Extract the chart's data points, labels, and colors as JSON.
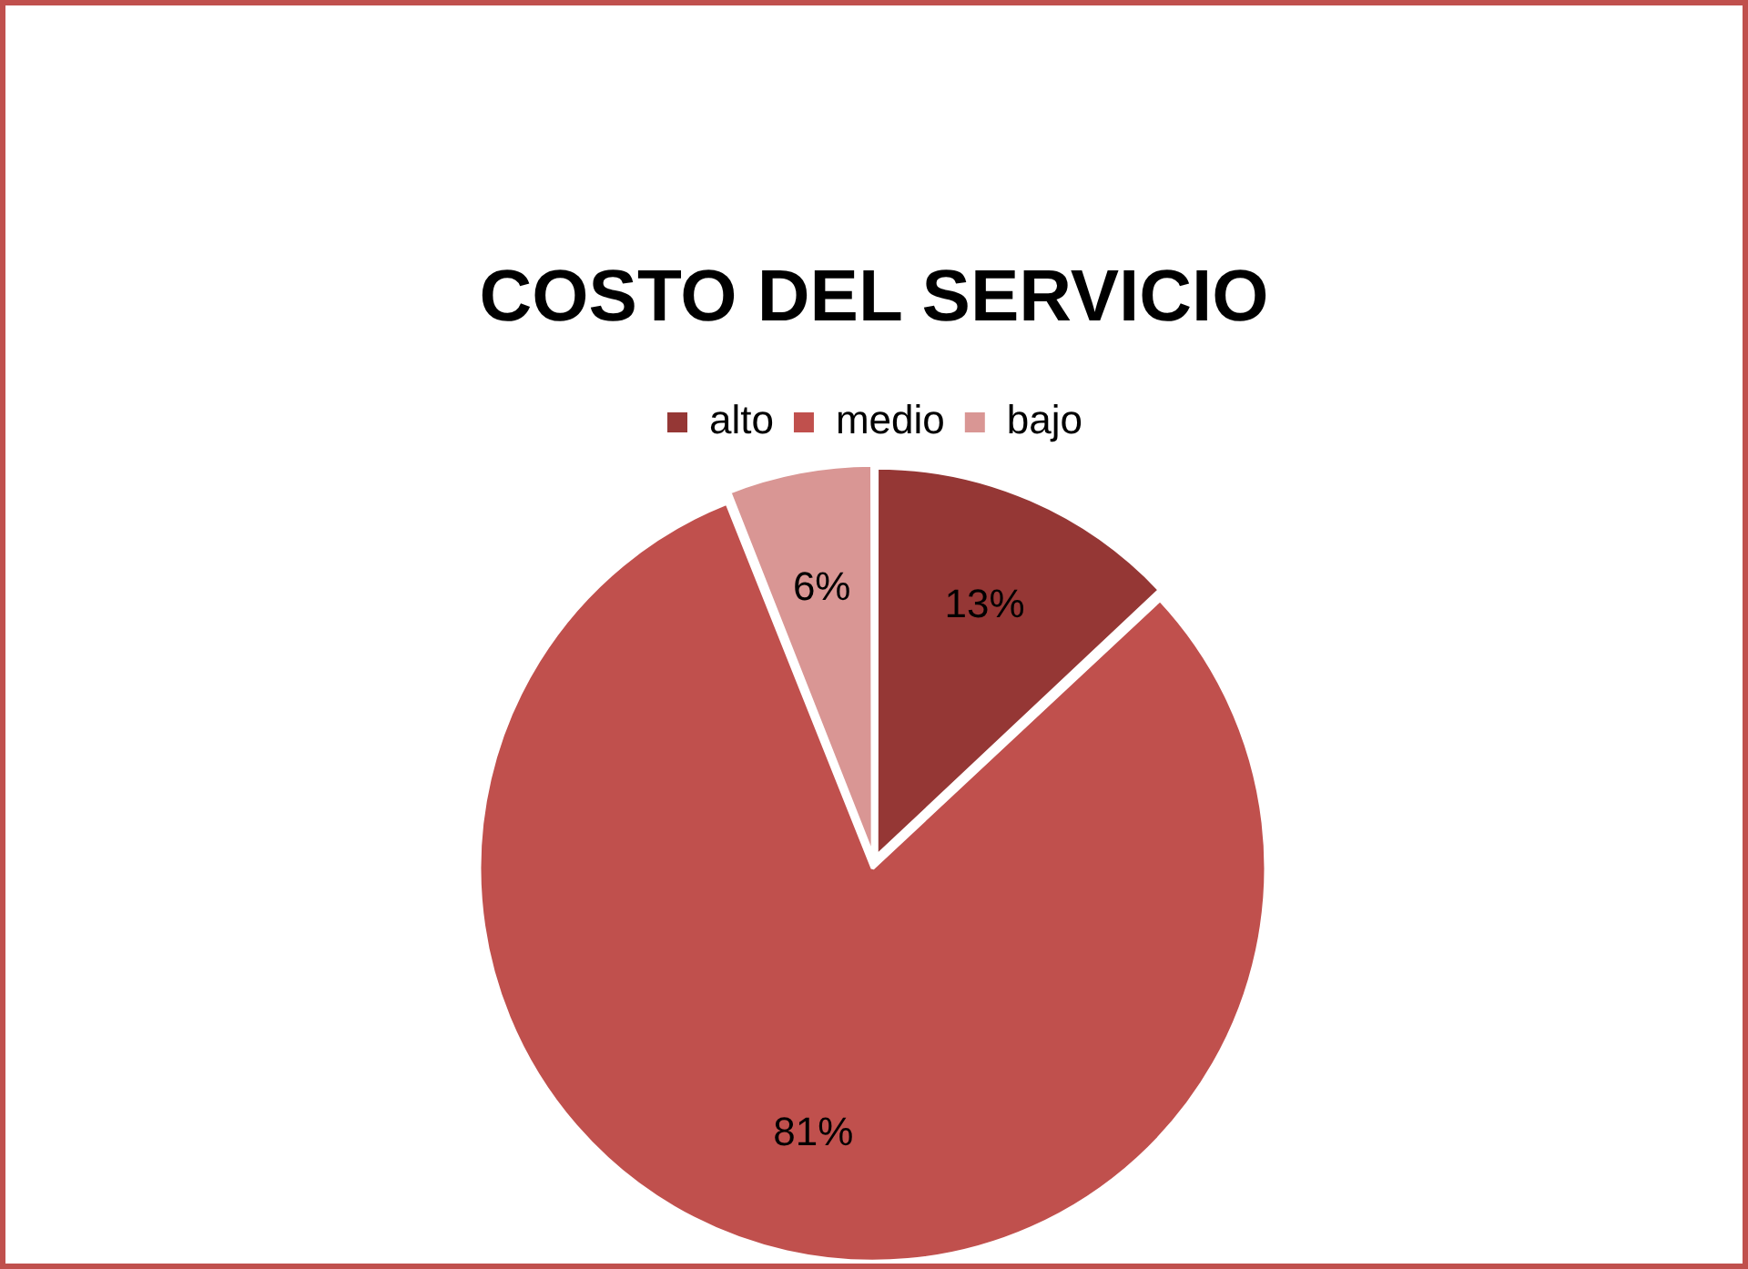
{
  "chart_data": {
    "type": "pie",
    "title": "COSTO DEL SERVICIO",
    "categories": [
      "alto",
      "medio",
      "bajo"
    ],
    "values": [
      13,
      81,
      6
    ],
    "colors": [
      "#953735",
      "#c0504d",
      "#d99694"
    ],
    "value_labels": [
      "13%",
      "81%",
      "6%"
    ],
    "legend": "top"
  }
}
